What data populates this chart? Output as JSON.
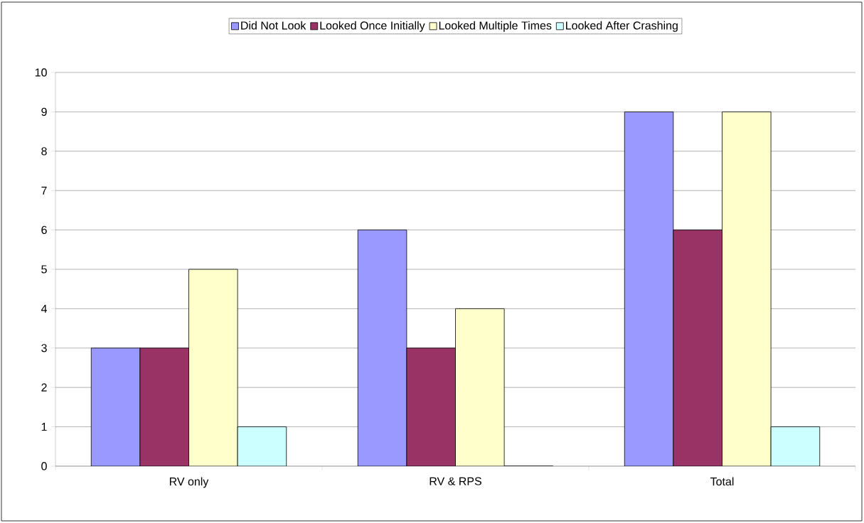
{
  "chart_data": {
    "type": "bar",
    "categories": [
      "RV only",
      "RV & RPS",
      "Total"
    ],
    "series": [
      {
        "name": "Did Not Look",
        "color": "#9999ff",
        "values": [
          3,
          6,
          9
        ]
      },
      {
        "name": "Looked Once Initially",
        "color": "#993366",
        "values": [
          3,
          3,
          6
        ]
      },
      {
        "name": "Looked Multiple Times",
        "color": "#ffffcc",
        "values": [
          5,
          4,
          9
        ]
      },
      {
        "name": "Looked After Crashing",
        "color": "#ccffff",
        "values": [
          1,
          0,
          1
        ]
      }
    ],
    "ylim": [
      0,
      10
    ],
    "yticks": [
      0,
      1,
      2,
      3,
      4,
      5,
      6,
      7,
      8,
      9,
      10
    ],
    "grid": "y",
    "legend": "top"
  }
}
